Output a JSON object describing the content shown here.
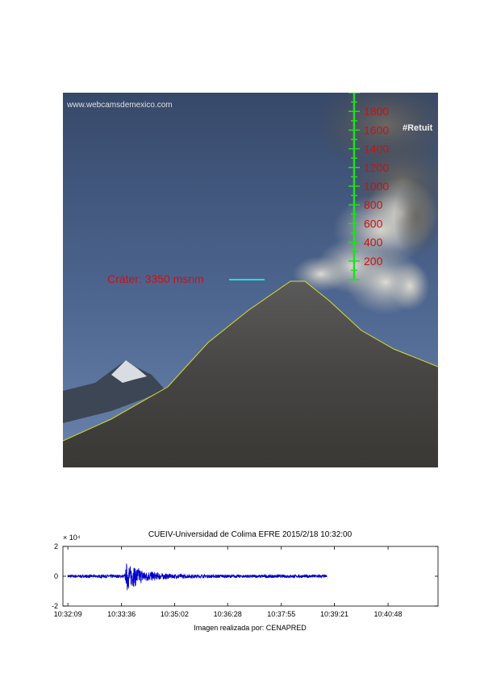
{
  "photo": {
    "watermark": "www.webcamsdemexico.com",
    "tag": "#Retuit",
    "crater_label": "Cráter: 3350 msnm",
    "scale": {
      "marks": [
        "1800",
        "1600",
        "1400",
        "1200",
        "1000",
        "800",
        "600",
        "400",
        "200"
      ],
      "values": [
        1800,
        1600,
        1400,
        1200,
        1000,
        800,
        600,
        400,
        200
      ],
      "min": 0,
      "max": 2000
    },
    "colors": {
      "scale": "#22dd22",
      "scale_text": "#cc1111",
      "crater_line": "#22dddd",
      "ridge": "#dddd22"
    }
  },
  "chart_data": {
    "type": "line",
    "title": "CUEIV-Universidad de Colima EFRE 2015/2/18 10:32:00",
    "xlabel": "Imagen realizada por: CENAPRED",
    "ylabel": "",
    "exponent_label": "× 10⁴",
    "x_ticks": [
      "10:32:09",
      "10:33:36",
      "10:35:02",
      "10:36:28",
      "10:37:55",
      "10:39:21",
      "10:40:48"
    ],
    "x_tick_seconds": [
      0,
      87,
      173,
      259,
      346,
      432,
      519
    ],
    "xlim_seconds": [
      -8,
      600
    ],
    "y_ticks": [
      2,
      0,
      -2
    ],
    "ylim": [
      -2,
      2
    ],
    "series": [
      {
        "color": "#0000cc",
        "envelope": {
          "t_start": 0,
          "t_end": 420,
          "event_onset": 95,
          "event_peak_amplitude": 0.95,
          "background_amplitude": 0.12,
          "decay_seconds": 28
        }
      }
    ]
  }
}
